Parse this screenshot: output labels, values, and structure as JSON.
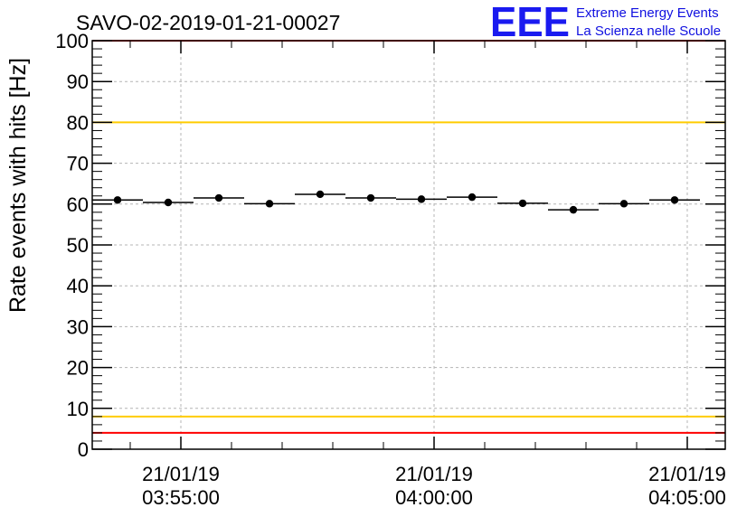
{
  "chart_data": {
    "type": "scatter",
    "title": "SAVO-02-2019-01-21-00027",
    "ylabel": "Rate events with hits [Hz]",
    "xlabel": "",
    "ylim": [
      0,
      100
    ],
    "yticks": [
      0,
      10,
      20,
      30,
      40,
      50,
      60,
      70,
      80,
      90,
      100
    ],
    "xlim": [
      "03:53:15",
      "04:05:45"
    ],
    "xticks": [
      {
        "date": "21/01/19",
        "time": "03:55:00"
      },
      {
        "date": "21/01/19",
        "time": "04:00:00"
      },
      {
        "date": "21/01/19",
        "time": "04:05:00"
      }
    ],
    "grid": true,
    "bin_width_s": 60,
    "points": [
      {
        "x": "03:53:45",
        "y": 61.0
      },
      {
        "x": "03:54:45",
        "y": 60.4
      },
      {
        "x": "03:55:45",
        "y": 61.5
      },
      {
        "x": "03:56:45",
        "y": 60.1
      },
      {
        "x": "03:57:45",
        "y": 62.4
      },
      {
        "x": "03:58:45",
        "y": 61.5
      },
      {
        "x": "03:59:45",
        "y": 61.2
      },
      {
        "x": "04:00:45",
        "y": 61.7
      },
      {
        "x": "04:01:45",
        "y": 60.2
      },
      {
        "x": "04:02:45",
        "y": 58.6
      },
      {
        "x": "04:03:45",
        "y": 60.1
      },
      {
        "x": "04:04:45",
        "y": 61.0
      }
    ],
    "reference_lines": [
      {
        "y": 100,
        "color": "#ff0000"
      },
      {
        "y": 80,
        "color": "#ffcc00"
      },
      {
        "y": 8,
        "color": "#ffcc00"
      },
      {
        "y": 4,
        "color": "#ff0000"
      }
    ]
  },
  "logo": {
    "mark": "EEE",
    "line1": "Extreme Energy Events",
    "line2": "La Scienza nelle Scuole",
    "color": "#1a1af0"
  }
}
